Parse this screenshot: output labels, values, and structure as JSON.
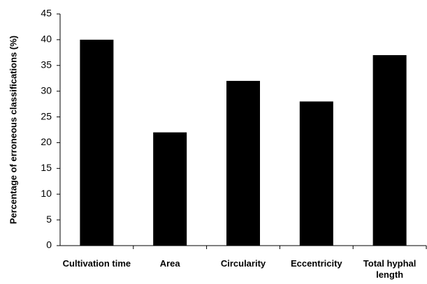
{
  "chart_data": {
    "type": "bar",
    "y_label": "Percentage of erroneous classifications (%)",
    "categories": [
      "Cultivation time",
      "Area",
      "Circularity",
      "Eccentricity",
      "Total hyphal length"
    ],
    "values": [
      40,
      22,
      32,
      28,
      37
    ],
    "color": "#000000",
    "ylim": [
      0,
      45
    ],
    "yticks": [
      0,
      5,
      10,
      15,
      20,
      25,
      30,
      35,
      40,
      45
    ],
    "grid": false
  }
}
